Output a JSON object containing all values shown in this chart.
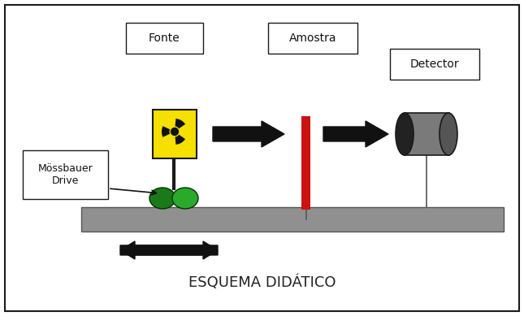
{
  "title": "ESQUEMA DIDÁTICO",
  "labels": {
    "fonte": "Fonte",
    "amostra": "Amostra",
    "detector": "Detector",
    "mossbauer": "Mössbauer\nDrive"
  },
  "colors": {
    "background": "#ffffff",
    "border": "#1a1a1a",
    "rail": "#909090",
    "rail_edge": "#555555",
    "yellow_box": "#f5e000",
    "radiation_symbol": "#111111",
    "green_coil1": "#1a7a1a",
    "green_coil2": "#2aaa2a",
    "red_sample": "#cc1111",
    "detector_body": "#7a7a7a",
    "detector_dark": "#222222",
    "detector_mid": "#555555",
    "arrow": "#111111",
    "text": "#111111",
    "text_title": "#222222"
  },
  "fig_width": 6.45,
  "fig_height": 3.89,
  "dpi": 100
}
